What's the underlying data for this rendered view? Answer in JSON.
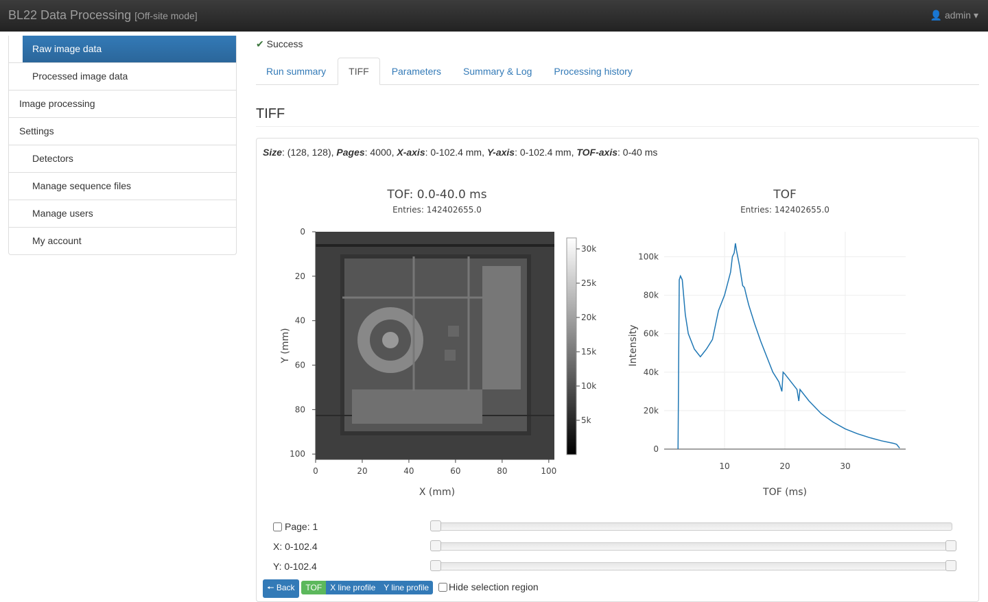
{
  "header": {
    "title": "BL22 Data Processing",
    "mode": "[Off-site mode]",
    "user": "admin"
  },
  "sidebar": [
    "Raw image data",
    "Processed image data",
    "Image processing",
    "Settings",
    "Detectors",
    "Manage sequence files",
    "Manage users",
    "My account"
  ],
  "status": "Success",
  "tabs": [
    "Run summary",
    "TIFF",
    "Parameters",
    "Summary & Log",
    "Processing history"
  ],
  "heading": "TIFF",
  "info": [
    {
      "label": "Size",
      "text": ": (128, 128), "
    },
    {
      "label": "Pages",
      "text": ": 4000, "
    },
    {
      "label": "X-axis",
      "text": ": 0-102.4 mm, "
    },
    {
      "label": "Y-axis",
      "text": ": 0-102.4 mm, "
    },
    {
      "label": "TOF-axis",
      "text": ": 0-40 ms"
    }
  ],
  "chart_data": [
    {
      "type": "heatmap",
      "title": "TOF: 0.0-40.0 ms",
      "subtitle": "Entries: 142402655.0",
      "x_label": "X (mm)",
      "y_label": "Y (mm)",
      "xlim": [
        0,
        102.4
      ],
      "xticks": [
        0,
        20,
        40,
        60,
        80,
        100
      ],
      "ylim": [
        0,
        102.4
      ],
      "yticks": [
        0,
        20,
        40,
        60,
        80,
        100
      ],
      "y_reversed": true,
      "colorbar": {
        "lim": [
          0,
          31600
        ],
        "ticks": [
          {
            "value": 5000,
            "label": "5k"
          },
          {
            "value": 10000,
            "label": "10k"
          },
          {
            "value": 15000,
            "label": "15k"
          },
          {
            "value": 20000,
            "label": "20k"
          },
          {
            "value": 25000,
            "label": "25k"
          },
          {
            "value": 30000,
            "label": "30k"
          }
        ]
      }
    },
    {
      "type": "line",
      "title": "TOF",
      "subtitle": "Entries: 142402655.0",
      "x_label": "TOF (ms)",
      "y_label": "Intensity",
      "color": "#1f77b4",
      "grid": true,
      "xlim": [
        0,
        40
      ],
      "xticks": [
        10,
        20,
        30
      ],
      "ylim": [
        0,
        113000
      ],
      "yticks": [
        0,
        {
          "value": 20000,
          "label": "20k"
        },
        {
          "value": 40000,
          "label": "40k"
        },
        {
          "value": 60000,
          "label": "60k"
        },
        {
          "value": 80000,
          "label": "80k"
        },
        {
          "value": 100000,
          "label": "100k"
        }
      ],
      "x": [
        2.3,
        2.5,
        2.7,
        3,
        3.5,
        4,
        5,
        6,
        6.5,
        7,
        8,
        9,
        10,
        11,
        11.3,
        11.6,
        11.8,
        12,
        12.5,
        13,
        13.3,
        13.6,
        14,
        15,
        16,
        17,
        18,
        19,
        19.5,
        19.7,
        20,
        21,
        22,
        22.3,
        22.5,
        24,
        26,
        28,
        30,
        32,
        34,
        36,
        38,
        38.5,
        39
      ],
      "values": [
        0,
        88000,
        90000,
        88000,
        70000,
        60000,
        52000,
        48000,
        50000,
        52000,
        57000,
        72000,
        80000,
        92000,
        100000,
        102000,
        107000,
        103000,
        95000,
        85000,
        84000,
        80000,
        75000,
        65000,
        56000,
        48000,
        40000,
        35000,
        30000,
        40000,
        39000,
        35000,
        31000,
        25000,
        31000,
        25000,
        18500,
        14000,
        10500,
        8000,
        6000,
        4300,
        3000,
        2500,
        500
      ]
    }
  ],
  "controls": {
    "page": "Page: 1",
    "x_range": "X: 0-102.4",
    "y_range": "Y: 0-102.4"
  },
  "buttons": [
    "Back",
    "TOF",
    "X line profile",
    "Y line profile"
  ],
  "hide_region": "Hide selection region"
}
